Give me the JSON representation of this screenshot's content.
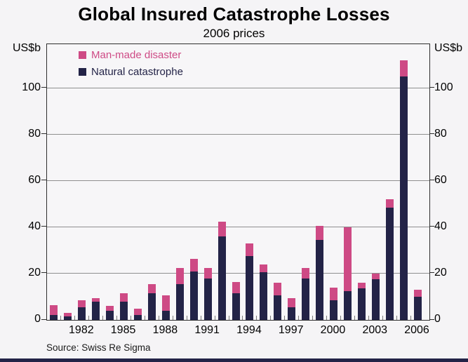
{
  "page": {
    "bottom_rule_color": "#232347",
    "background_color": "#f5f4f6"
  },
  "chart_data": {
    "type": "bar",
    "stacked": true,
    "title": "Global Insured Catastrophe Losses",
    "subtitle": "2006 prices",
    "unit_label_left": "US$b",
    "unit_label_right": "US$b",
    "source": "Source: Swiss Re Sigma",
    "grid": true,
    "legend_position": "top-left-inside",
    "ylim": [
      0,
      119
    ],
    "yticks": [
      0,
      20,
      40,
      60,
      80,
      100
    ],
    "years": [
      1980,
      1981,
      1982,
      1983,
      1984,
      1985,
      1986,
      1987,
      1988,
      1989,
      1990,
      1991,
      1992,
      1993,
      1994,
      1995,
      1996,
      1997,
      1998,
      1999,
      2000,
      2001,
      2002,
      2003,
      2004,
      2005,
      2006
    ],
    "x_tick_labels": [
      "1982",
      "1985",
      "1988",
      "1991",
      "1994",
      "1997",
      "2000",
      "2003",
      "2006"
    ],
    "series": [
      {
        "name": "Man-made disaster",
        "color": "#ce4a85",
        "stack_position": "top",
        "values": [
          4.5,
          1.5,
          3,
          1.5,
          2,
          3.5,
          3,
          4,
          6.5,
          7,
          5.5,
          4.5,
          6.5,
          5,
          5.5,
          3.5,
          5.5,
          4,
          4.5,
          6,
          5.5,
          27.5,
          2.5,
          2.5,
          3.5,
          7,
          3
        ]
      },
      {
        "name": "Natural catastrophe",
        "color": "#232347",
        "stack_position": "bottom",
        "values": [
          2,
          1.5,
          5.5,
          8,
          4,
          8,
          2,
          11.5,
          4,
          15.5,
          21,
          18,
          36,
          11.5,
          27.5,
          20.5,
          10.5,
          5.5,
          18,
          34.5,
          8.5,
          12.5,
          13.5,
          17.5,
          48.5,
          105,
          10
        ]
      }
    ]
  }
}
